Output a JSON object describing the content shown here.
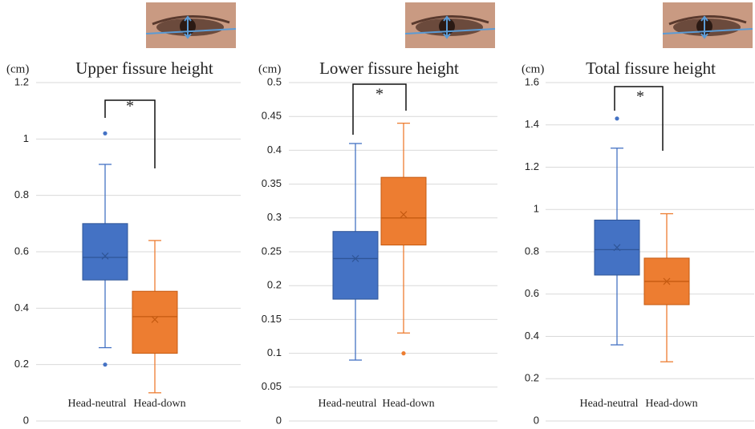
{
  "chart_data": [
    {
      "type": "box",
      "title": "Upper fissure height",
      "y_unit": "(cm)",
      "annotation": "*",
      "ylim": [
        0,
        1.2
      ],
      "yticks": [
        0,
        0.2,
        0.4,
        0.6,
        0.8,
        1,
        1.2
      ],
      "grid": true,
      "series": [
        {
          "name": "Head-neutral",
          "color": "#4472c4",
          "min": 0.26,
          "q1": 0.5,
          "median": 0.58,
          "q3": 0.7,
          "max": 0.91,
          "mean": 0.585,
          "outliers": [
            1.02,
            0.2
          ]
        },
        {
          "name": "Head-down",
          "color": "#ed7d31",
          "min": 0.1,
          "q1": 0.24,
          "median": 0.37,
          "q3": 0.46,
          "max": 0.64,
          "mean": 0.36,
          "outliers": []
        }
      ]
    },
    {
      "type": "box",
      "title": "Lower fissure height",
      "y_unit": "(cm)",
      "annotation": "*",
      "ylim": [
        0,
        0.5
      ],
      "yticks": [
        0,
        0.05,
        0.1,
        0.15,
        0.2,
        0.25,
        0.3,
        0.35,
        0.4,
        0.45,
        0.5
      ],
      "grid": true,
      "series": [
        {
          "name": "Head-neutral",
          "color": "#4472c4",
          "min": 0.09,
          "q1": 0.18,
          "median": 0.24,
          "q3": 0.28,
          "max": 0.41,
          "mean": 0.24,
          "outliers": []
        },
        {
          "name": "Head-down",
          "color": "#ed7d31",
          "min": 0.13,
          "q1": 0.26,
          "median": 0.3,
          "q3": 0.36,
          "max": 0.44,
          "mean": 0.305,
          "outliers": [
            0.1
          ]
        }
      ]
    },
    {
      "type": "box",
      "title": "Total fissure height",
      "y_unit": "(cm)",
      "annotation": "*",
      "ylim": [
        0,
        1.6
      ],
      "yticks": [
        0,
        0.2,
        0.4,
        0.6,
        0.8,
        1,
        1.2,
        1.4,
        1.6
      ],
      "grid": true,
      "series": [
        {
          "name": "Head-neutral",
          "color": "#4472c4",
          "min": 0.36,
          "q1": 0.69,
          "median": 0.81,
          "q3": 0.95,
          "max": 1.29,
          "mean": 0.82,
          "outliers": [
            1.43
          ]
        },
        {
          "name": "Head-down",
          "color": "#ed7d31",
          "min": 0.28,
          "q1": 0.55,
          "median": 0.66,
          "q3": 0.77,
          "max": 0.98,
          "mean": 0.66,
          "outliers": []
        }
      ]
    }
  ]
}
